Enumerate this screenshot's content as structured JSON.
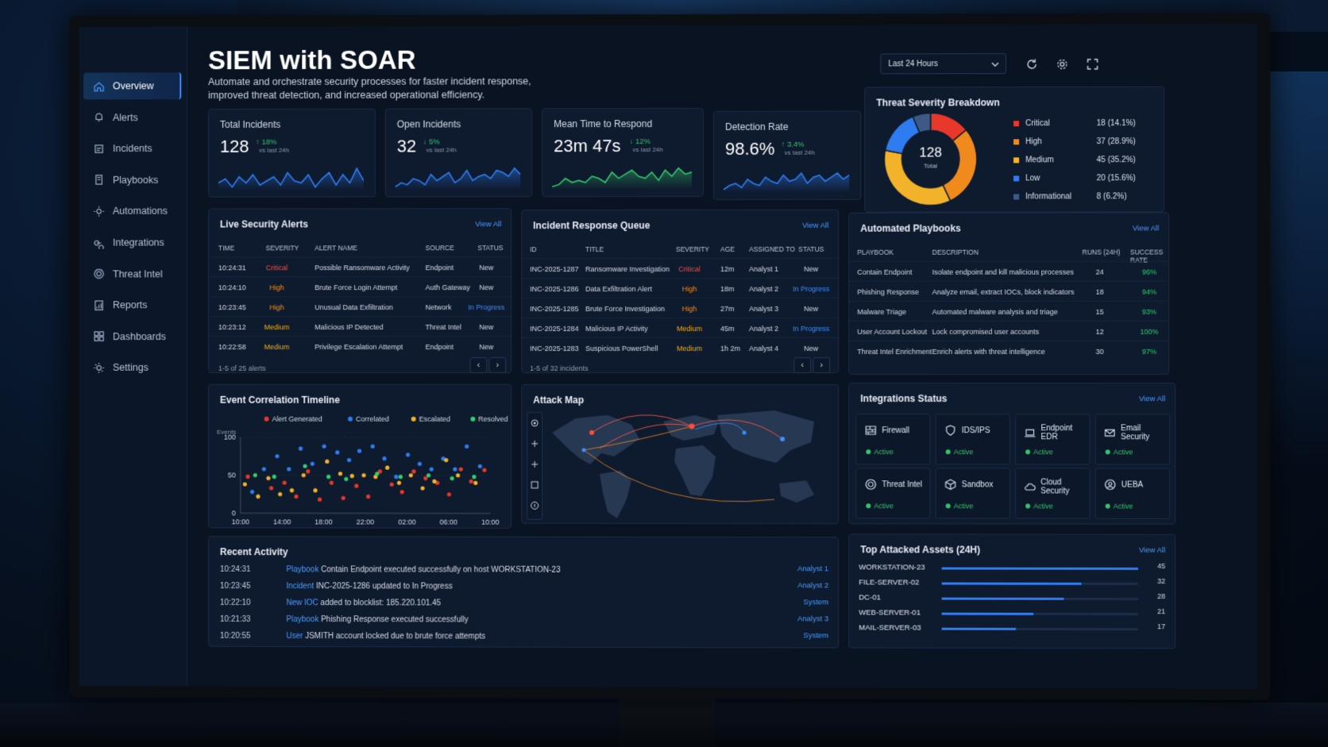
{
  "app": {
    "title": "SIEM with SOAR",
    "subtitle": "Automate and orchestrate security processes for faster incident response, improved threat detection, and increased operational efficiency."
  },
  "sidebar": {
    "items": [
      {
        "label": "Overview",
        "icon": "home-icon"
      },
      {
        "label": "Alerts",
        "icon": "bell-icon"
      },
      {
        "label": "Incidents",
        "icon": "incident-icon"
      },
      {
        "label": "Playbooks",
        "icon": "playbook-icon"
      },
      {
        "label": "Automations",
        "icon": "gear-icon"
      },
      {
        "label": "Integrations",
        "icon": "integration-icon"
      },
      {
        "label": "Threat Intel",
        "icon": "target-icon"
      },
      {
        "label": "Reports",
        "icon": "report-icon"
      },
      {
        "label": "Dashboards",
        "icon": "dashboard-icon"
      },
      {
        "label": "Settings",
        "icon": "settings-icon"
      }
    ]
  },
  "toolbar": {
    "range": "Last 24 Hours"
  },
  "kpis": [
    {
      "label": "Total Incidents",
      "value": "128",
      "delta": "↑ 18%",
      "vs": "vs last 24h"
    },
    {
      "label": "Open Incidents",
      "value": "32",
      "delta": "↓ 5%",
      "vs": "vs last 24h"
    },
    {
      "label": "Mean Time to Respond",
      "value": "23m 47s",
      "delta": "↓ 12%",
      "vs": "vs last 24h"
    },
    {
      "label": "Detection Rate",
      "value": "98.6%",
      "delta": "↑ 3.4%",
      "vs": "vs last 24h"
    }
  ],
  "severity": {
    "title": "Threat Severity Breakdown",
    "total": "128",
    "total_label": "Total",
    "items": [
      {
        "label": "Critical",
        "value": "18 (14.1%)",
        "count": 18,
        "color": "#e8372b"
      },
      {
        "label": "High",
        "value": "37 (28.9%)",
        "count": 37,
        "color": "#f08a1c"
      },
      {
        "label": "Medium",
        "value": "45 (35.2%)",
        "count": 45,
        "color": "#f2b32a"
      },
      {
        "label": "Low",
        "value": "20 (15.6%)",
        "count": 20,
        "color": "#2f7cf2"
      },
      {
        "label": "Informational",
        "value": "8 (6.2%)",
        "count": 8,
        "color": "#3d5a85"
      }
    ]
  },
  "alerts": {
    "title": "Live Security Alerts",
    "view_all": "View All",
    "headers": [
      "TIME",
      "SEVERITY",
      "ALERT NAME",
      "SOURCE",
      "STATUS"
    ],
    "rows": [
      [
        "10:24:31",
        "Critical",
        "Possible Ransomware Activity",
        "Endpoint",
        "New"
      ],
      [
        "10:24:10",
        "High",
        "Brute Force Login Attempt",
        "Auth Gateway",
        "New"
      ],
      [
        "10:23:45",
        "High",
        "Unusual Data Exfiltration",
        "Network",
        "In Progress"
      ],
      [
        "10:23:12",
        "Medium",
        "Malicious IP Detected",
        "Threat Intel",
        "New"
      ],
      [
        "10:22:58",
        "Medium",
        "Privilege Escalation Attempt",
        "Endpoint",
        "New"
      ]
    ],
    "footer": "1-5 of 25 alerts"
  },
  "queue": {
    "title": "Incident Response Queue",
    "view_all": "View All",
    "headers": [
      "ID",
      "TITLE",
      "SEVERITY",
      "AGE",
      "ASSIGNED TO",
      "STATUS"
    ],
    "rows": [
      [
        "INC-2025-1287",
        "Ransomware Investigation",
        "Critical",
        "12m",
        "Analyst 1",
        "New"
      ],
      [
        "INC-2025-1286",
        "Data Exfiltration Alert",
        "High",
        "18m",
        "Analyst 2",
        "In Progress"
      ],
      [
        "INC-2025-1285",
        "Brute Force Investigation",
        "High",
        "27m",
        "Analyst 3",
        "New"
      ],
      [
        "INC-2025-1284",
        "Malicious IP Activity",
        "Medium",
        "45m",
        "Analyst 2",
        "In Progress"
      ],
      [
        "INC-2025-1283",
        "Suspicious PowerShell",
        "Medium",
        "1h 2m",
        "Analyst 4",
        "New"
      ]
    ],
    "footer": "1-5 of 32 incidents"
  },
  "playbooks": {
    "title": "Automated Playbooks",
    "view_all": "View All",
    "headers": [
      "PLAYBOOK",
      "DESCRIPTION",
      "RUNS (24H)",
      "SUCCESS RATE"
    ],
    "rows": [
      [
        "Contain Endpoint",
        "Isolate endpoint and kill malicious processes",
        "24",
        "96%"
      ],
      [
        "Phishing Response",
        "Analyze email, extract IOCs, block indicators",
        "18",
        "94%"
      ],
      [
        "Malware Triage",
        "Automated malware analysis and triage",
        "15",
        "93%"
      ],
      [
        "User Account Lockout",
        "Lock compromised user accounts",
        "12",
        "100%"
      ],
      [
        "Threat Intel Enrichment",
        "Enrich alerts with threat intelligence",
        "30",
        "97%"
      ]
    ]
  },
  "timeline": {
    "title": "Event Correlation Timeline",
    "legend": [
      {
        "label": "Alert Generated",
        "color": "#e8372b"
      },
      {
        "label": "Correlated",
        "color": "#2f7cf2"
      },
      {
        "label": "Escalated",
        "color": "#f2b32a"
      },
      {
        "label": "Resolved",
        "color": "#2ed06a"
      }
    ]
  },
  "chart_data": {
    "type": "scatter",
    "ylabel": "Events",
    "ylim": [
      0,
      100
    ],
    "yticks": [
      "100",
      "50",
      "0"
    ],
    "xticks": [
      "10:00",
      "14:00",
      "18:00",
      "22:00",
      "02:00",
      "06:00",
      "10:00"
    ],
    "series": [
      {
        "name": "Alert Generated",
        "color": "#e8372b",
        "points": [
          [
            0.5,
            48
          ],
          [
            2.1,
            33
          ],
          [
            3.0,
            40
          ],
          [
            3.8,
            22
          ],
          [
            4.6,
            55
          ],
          [
            5.4,
            18
          ],
          [
            6.2,
            40
          ],
          [
            7.0,
            20
          ],
          [
            7.9,
            36
          ],
          [
            8.7,
            22
          ],
          [
            9.5,
            55
          ],
          [
            10.3,
            38
          ],
          [
            11.0,
            28
          ],
          [
            11.8,
            55
          ],
          [
            12.6,
            46
          ],
          [
            13.4,
            40
          ],
          [
            14.2,
            25
          ],
          [
            15.0,
            58
          ],
          [
            15.7,
            42
          ],
          [
            16.6,
            57
          ]
        ]
      },
      {
        "name": "Correlated",
        "color": "#2f7cf2",
        "points": [
          [
            0.8,
            28
          ],
          [
            1.6,
            58
          ],
          [
            2.5,
            75
          ],
          [
            3.3,
            58
          ],
          [
            4.1,
            85
          ],
          [
            4.9,
            65
          ],
          [
            5.7,
            88
          ],
          [
            6.6,
            80
          ],
          [
            7.4,
            70
          ],
          [
            8.1,
            82
          ],
          [
            9.0,
            88
          ],
          [
            9.8,
            72
          ],
          [
            10.6,
            48
          ],
          [
            11.4,
            77
          ],
          [
            12.2,
            65
          ],
          [
            13.0,
            58
          ],
          [
            13.8,
            72
          ],
          [
            14.6,
            58
          ],
          [
            15.4,
            88
          ],
          [
            16.3,
            62
          ]
        ]
      },
      {
        "name": "Escalated",
        "color": "#f2b32a",
        "points": [
          [
            0.3,
            38
          ],
          [
            1.2,
            22
          ],
          [
            1.9,
            46
          ],
          [
            2.7,
            25
          ],
          [
            3.5,
            30
          ],
          [
            4.3,
            50
          ],
          [
            5.1,
            30
          ],
          [
            5.9,
            68
          ],
          [
            6.8,
            52
          ],
          [
            7.6,
            49
          ],
          [
            8.4,
            50
          ],
          [
            9.2,
            48
          ],
          [
            10.0,
            60
          ],
          [
            10.8,
            40
          ],
          [
            11.6,
            50
          ],
          [
            12.4,
            33
          ],
          [
            13.2,
            42
          ],
          [
            14.0,
            70
          ],
          [
            14.8,
            50
          ],
          [
            16.0,
            40
          ]
        ]
      },
      {
        "name": "Resolved",
        "color": "#2ed06a",
        "points": [
          [
            1.0,
            50
          ],
          [
            2.3,
            48
          ],
          [
            4.4,
            62
          ],
          [
            6.0,
            48
          ],
          [
            7.2,
            45
          ],
          [
            9.3,
            52
          ],
          [
            10.9,
            48
          ],
          [
            12.8,
            50
          ],
          [
            14.4,
            46
          ],
          [
            15.9,
            48
          ]
        ]
      }
    ]
  },
  "attack_map": {
    "title": "Attack Map"
  },
  "integrations": {
    "title": "Integrations Status",
    "view_all": "View All",
    "items": [
      {
        "label": "Firewall",
        "status": "Active",
        "icon": "firewall-icon"
      },
      {
        "label": "IDS/IPS",
        "status": "Active",
        "icon": "shield-icon"
      },
      {
        "label": "Endpoint EDR",
        "status": "Active",
        "icon": "laptop-icon"
      },
      {
        "label": "Email Security",
        "status": "Active",
        "icon": "mail-icon"
      },
      {
        "label": "Threat Intel",
        "status": "Active",
        "icon": "target-icon"
      },
      {
        "label": "Sandbox",
        "status": "Active",
        "icon": "cube-icon"
      },
      {
        "label": "Cloud Security",
        "status": "Active",
        "icon": "cloud-icon"
      },
      {
        "label": "UEBA",
        "status": "Active",
        "icon": "user-icon"
      }
    ]
  },
  "activity": {
    "title": "Recent Activity",
    "rows": [
      {
        "time": "10:24:31",
        "kind": "Playbook",
        "text": "Contain Endpoint executed successfully on host WORKSTATION-23",
        "by": "Analyst 1"
      },
      {
        "time": "10:23:45",
        "kind": "Incident",
        "text": "INC-2025-1286 updated to In Progress",
        "by": "Analyst 2"
      },
      {
        "time": "10:22:10",
        "kind": "New IOC",
        "text": "added to blocklist: 185.220.101.45",
        "by": "System"
      },
      {
        "time": "10:21:33",
        "kind": "Playbook",
        "text": "Phishing Response executed successfully",
        "by": "Analyst 3"
      },
      {
        "time": "10:20:55",
        "kind": "User",
        "text": "JSMITH account locked due to brute force attempts",
        "by": "System"
      }
    ]
  },
  "assets": {
    "title": "Top Attacked Assets (24H)",
    "view_all": "View All",
    "max": 45,
    "items": [
      {
        "name": "WORKSTATION-23",
        "value": 45
      },
      {
        "name": "FILE-SERVER-02",
        "value": 32
      },
      {
        "name": "DC-01",
        "value": 28
      },
      {
        "name": "WEB-SERVER-01",
        "value": 21
      },
      {
        "name": "MAIL-SERVER-03",
        "value": 17
      }
    ]
  }
}
